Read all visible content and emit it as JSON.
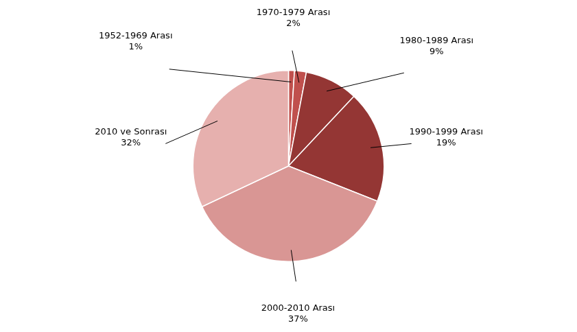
{
  "chart_data": {
    "type": "pie",
    "categories": [
      "1952-1969 Arası",
      "1970-1979 Arası",
      "1980-1989 Arası",
      "1990-1999 Arası",
      "2000-2010 Arası",
      "2010 ve Sonrası"
    ],
    "values": [
      1,
      2,
      9,
      19,
      37,
      32
    ],
    "value_labels": [
      "1%",
      "2%",
      "9%",
      "19%",
      "37%",
      "32%"
    ],
    "colors": [
      "#c0504d",
      "#c0504d",
      "#943634",
      "#943634",
      "#d99694",
      "#e6b0ae"
    ],
    "data_labels": true
  }
}
